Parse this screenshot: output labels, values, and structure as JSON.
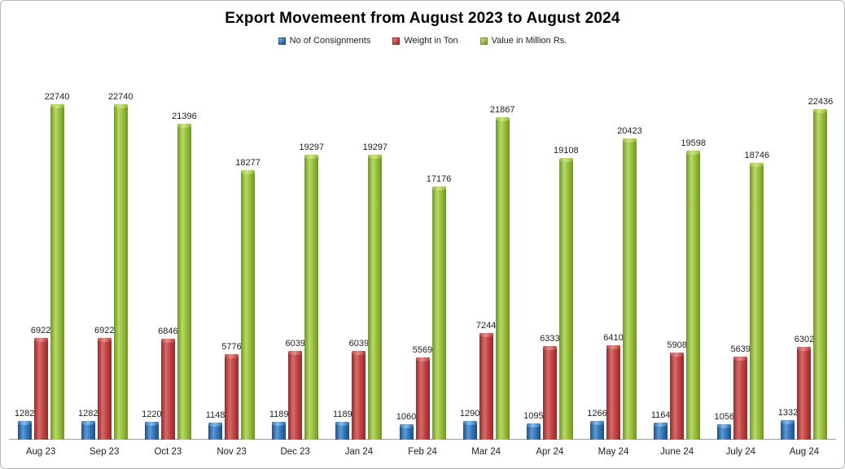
{
  "chart_data": {
    "type": "bar",
    "title": "Export Movemeent from August 2023 to August 2024",
    "categories": [
      "Aug 23",
      "Sep 23",
      "Oct 23",
      "Nov 23",
      "Dec 23",
      "Jan 24",
      "Feb 24",
      "Mar 24",
      "Apr 24",
      "May 24",
      "June 24",
      "July 24",
      "Aug 24"
    ],
    "series": [
      {
        "name": "No of Consignments",
        "color": "#3679BE",
        "color_light": "#5C9BD7",
        "color_dark": "#1D4E7E",
        "color_cap": "#8FBCE6",
        "values": [
          1282,
          1282,
          1220,
          1148,
          1189,
          1189,
          1060,
          1290,
          1095,
          1266,
          1164,
          1056,
          1332
        ]
      },
      {
        "name": "Weight in Ton",
        "color": "#C64545",
        "color_light": "#D86B6B",
        "color_dark": "#8F2B2B",
        "color_cap": "#E09090",
        "values": [
          6922,
          6922,
          6846,
          5776,
          6039,
          6039,
          5569,
          7244,
          6333,
          6410,
          5908,
          5639,
          6302
        ]
      },
      {
        "name": "Value in Million Rs.",
        "color": "#9CC13C",
        "color_light": "#B8D967",
        "color_dark": "#6F9428",
        "color_cap": "#CCE48C",
        "values": [
          22740,
          22740,
          21396,
          18277,
          19297,
          19297,
          17176,
          21867,
          19108,
          20423,
          19598,
          18746,
          22436
        ]
      }
    ],
    "xlabel": "",
    "ylabel": "",
    "ylim": [
      0,
      24000
    ],
    "grid": false,
    "legend_position": "top",
    "data_labels": true,
    "axis_color": "#9DA3A8",
    "text_color": "#1F1F1F",
    "background_color": "#FFFFFF"
  }
}
